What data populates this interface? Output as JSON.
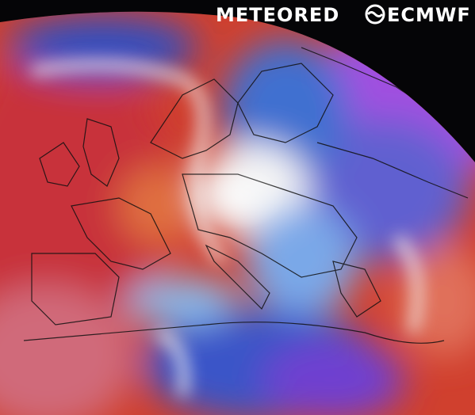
{
  "logos": {
    "meteored": "METEORED",
    "ecmwf": "ECMWF"
  }
}
